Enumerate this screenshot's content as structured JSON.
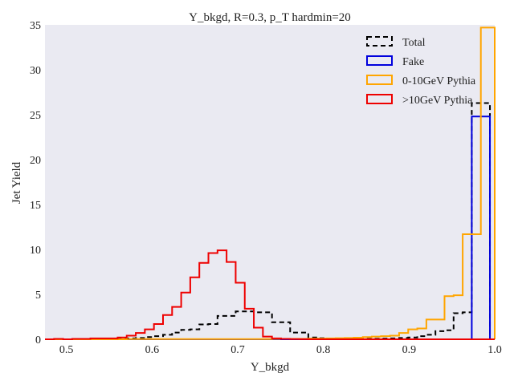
{
  "chart_data": {
    "type": "histogram-step",
    "title": "Y_bkgd, R=0.3, p_T hardmin=20",
    "xlabel": "Y_bkgd",
    "ylabel": "Jet Yield",
    "xlim": [
      0.475,
      1.0
    ],
    "ylim": [
      0,
      35
    ],
    "xticks": [
      0.5,
      0.6,
      0.7,
      0.8,
      0.9,
      1.0
    ],
    "xtick_labels": [
      "0.5",
      "0.6",
      "0.7",
      "0.8",
      "0.9",
      "1.0"
    ],
    "yticks": [
      0,
      5,
      10,
      15,
      20,
      25,
      30,
      35
    ],
    "ytick_labels": [
      "0",
      "5",
      "10",
      "15",
      "20",
      "25",
      "30",
      "35"
    ],
    "grid": false,
    "background": "#eaeaf2",
    "legend_position": "top-right",
    "bin_edges": [
      0.475,
      0.4856,
      0.4962,
      0.5068,
      0.5174,
      0.528,
      0.5386,
      0.5492,
      0.5598,
      0.5704,
      0.581,
      0.5916,
      0.6022,
      0.6128,
      0.6234,
      0.634,
      0.6446,
      0.6552,
      0.6658,
      0.6764,
      0.687,
      0.6976,
      0.7082,
      0.7188,
      0.7294,
      0.74,
      0.7506,
      0.7612,
      0.7718,
      0.7824,
      0.793,
      0.8036,
      0.8142,
      0.8248,
      0.8354,
      0.846,
      0.8566,
      0.8672,
      0.8778,
      0.8884,
      0.899,
      0.9096,
      0.9202,
      0.9308,
      0.9414,
      0.952,
      0.9626,
      0.9732,
      0.9838,
      0.9944,
      1.0
    ],
    "series": [
      {
        "name": "Total",
        "color": "#000000",
        "style": "dashed",
        "values": [
          0,
          0,
          0,
          0,
          0,
          0,
          0.02,
          0.04,
          0.06,
          0.1,
          0.15,
          0.25,
          0.35,
          0.5,
          0.75,
          1.05,
          1.1,
          1.65,
          1.7,
          2.6,
          2.6,
          3.1,
          3.1,
          3.0,
          3.0,
          1.9,
          1.9,
          0.75,
          0.75,
          0.2,
          0.12,
          0.05,
          0.04,
          0.03,
          0.03,
          0.04,
          0.06,
          0.08,
          0.1,
          0.15,
          0.2,
          0.35,
          0.5,
          0.9,
          1.0,
          2.9,
          3.0,
          26.3,
          26.3,
          0
        ]
      },
      {
        "name": "Fake",
        "color": "#0000dd",
        "style": "solid",
        "values": [
          0,
          0,
          0,
          0,
          0,
          0,
          0,
          0,
          0,
          0,
          0,
          0,
          0,
          0,
          0,
          0,
          0,
          0,
          0,
          0,
          0,
          0,
          0,
          0,
          0,
          0,
          0,
          0,
          0,
          0,
          0,
          0,
          0,
          0,
          0,
          0,
          0,
          0,
          0,
          0,
          0,
          0,
          0,
          0,
          0,
          0,
          0,
          24.8,
          24.8,
          0
        ]
      },
      {
        "name": "0-10GeV Pythia",
        "color": "#ffa500",
        "style": "solid",
        "values": [
          0,
          0,
          0,
          0,
          0,
          0,
          0,
          0,
          0,
          0.02,
          0.02,
          0.02,
          0.02,
          0.02,
          0.02,
          0.02,
          0.02,
          0.02,
          0.02,
          0.02,
          0.02,
          0.02,
          0.02,
          0.02,
          0.02,
          0.05,
          0.05,
          0.05,
          0.05,
          0.08,
          0.08,
          0.1,
          0.12,
          0.15,
          0.18,
          0.25,
          0.3,
          0.35,
          0.4,
          0.7,
          1.1,
          1.2,
          2.2,
          2.2,
          4.8,
          4.9,
          11.7,
          11.7,
          34.7,
          34.7
        ]
      },
      {
        "name": ">10GeV Pythia",
        "color": "#ee0000",
        "style": "solid",
        "values": [
          0,
          0.05,
          0,
          0.05,
          0.05,
          0.1,
          0.1,
          0.1,
          0.2,
          0.4,
          0.7,
          1.1,
          1.7,
          2.7,
          3.6,
          5.2,
          6.9,
          8.5,
          9.6,
          9.9,
          8.6,
          6.3,
          3.4,
          1.3,
          0.3,
          0.1,
          0.05,
          0.02,
          0.01,
          0,
          0,
          0,
          0,
          0,
          0,
          0,
          0,
          0,
          0,
          0,
          0,
          0,
          0,
          0,
          0,
          0,
          0,
          0,
          0,
          0
        ]
      }
    ]
  }
}
